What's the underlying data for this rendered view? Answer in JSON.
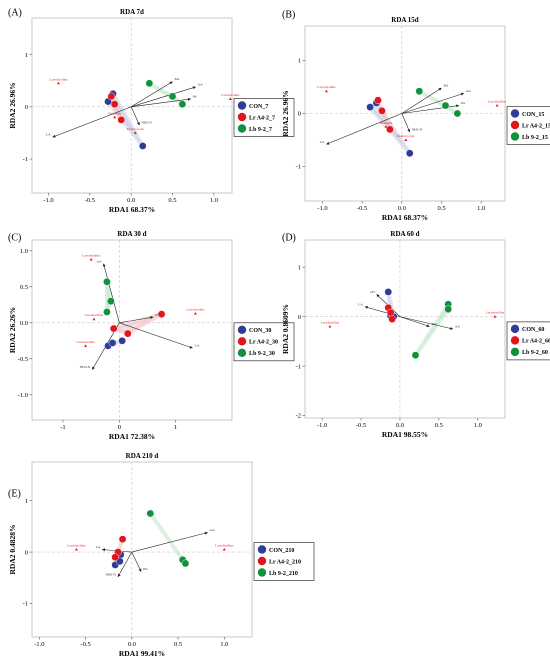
{
  "chart_data": [
    {
      "type": "scatter",
      "panel_label": "(A)",
      "title": "RDA  7d",
      "xlabel": "RDA1 68.37%",
      "ylabel": "RDA2 26.96%",
      "xticks": [
        -1.0,
        -0.5,
        0.0,
        0.5,
        1.0
      ],
      "xtick_labels": [
        "-1.0",
        "-0.5",
        "0.0",
        "0.5",
        "1.0"
      ],
      "yticks": [
        -1,
        0,
        1
      ],
      "ytick_labels": [
        "-1",
        "0",
        "1"
      ],
      "xlim": [
        -1.2,
        1.22
      ],
      "ylim": [
        -1.65,
        1.7
      ],
      "legend": [
        "CON_7",
        "Lr A4-2_7",
        "Lb 9-2_7"
      ],
      "legend_position": "right",
      "series": [
        {
          "name": "CON_7",
          "color": "#2e3d97",
          "points": [
            [
              -0.28,
              0.1
            ],
            [
              -0.22,
              0.25
            ],
            [
              0.14,
              -0.75
            ]
          ]
        },
        {
          "name": "Lr A4-2_7",
          "color": "#e3141c",
          "points": [
            [
              -0.24,
              0.2
            ],
            [
              -0.2,
              0.05
            ],
            [
              -0.12,
              -0.25
            ]
          ]
        },
        {
          "name": "Lb 9-2_7",
          "color": "#12913c",
          "points": [
            [
              0.22,
              0.45
            ],
            [
              0.5,
              0.2
            ],
            [
              0.62,
              0.05
            ]
          ]
        }
      ],
      "vectors": [
        {
          "label": "LA",
          "end": [
            -0.95,
            -0.58
          ]
        },
        {
          "label": "AA",
          "end": [
            0.78,
            0.38
          ]
        },
        {
          "label": "PA",
          "end": [
            0.72,
            0.15
          ]
        },
        {
          "label": "BA",
          "end": [
            0.5,
            0.48
          ]
        },
        {
          "label": "NH3-N",
          "end": [
            0.1,
            -0.35
          ]
        }
      ],
      "species": [
        {
          "label": "Lactobacillus",
          "pos": [
            -0.88,
            0.45
          ]
        },
        {
          "label": "Lactobacillus",
          "pos": [
            1.2,
            0.15
          ]
        },
        {
          "label": "Weissella",
          "pos": [
            -0.2,
            -0.2
          ]
        },
        {
          "label": "Pediococcus",
          "pos": [
            0.05,
            -0.5
          ]
        }
      ]
    },
    {
      "type": "scatter",
      "panel_label": "(B)",
      "title": "RDA  15d",
      "xlabel": "RDA1 68.37%",
      "ylabel": "RDA2 26.96%",
      "xticks": [
        -1.0,
        -0.5,
        0.0,
        0.5,
        1.0
      ],
      "xtick_labels": [
        "-1.0",
        "-0.5",
        "0.0",
        "0.5",
        "1.0"
      ],
      "yticks": [
        -1,
        0,
        1
      ],
      "ytick_labels": [
        "-1",
        "0",
        "1"
      ],
      "xlim": [
        -1.22,
        1.3
      ],
      "ylim": [
        -1.65,
        1.65
      ],
      "legend": [
        "CON_15",
        "Lr A4-2_15",
        "Lb 9-2_15"
      ],
      "legend_position": "right",
      "series": [
        {
          "name": "CON_15",
          "color": "#2e3d97",
          "points": [
            [
              -0.4,
              0.12
            ],
            [
              -0.32,
              0.2
            ],
            [
              0.1,
              -0.75
            ]
          ]
        },
        {
          "name": "Lr A4-2_15",
          "color": "#e3141c",
          "points": [
            [
              -0.3,
              0.25
            ],
            [
              -0.25,
              0.05
            ],
            [
              -0.15,
              -0.3
            ]
          ]
        },
        {
          "name": "Lb 9-2_15",
          "color": "#12913c",
          "points": [
            [
              0.22,
              0.42
            ],
            [
              0.55,
              0.15
            ],
            [
              0.7,
              0.0
            ]
          ]
        }
      ],
      "vectors": [
        {
          "label": "LA",
          "end": [
            -0.95,
            -0.58
          ]
        },
        {
          "label": "AA",
          "end": [
            0.78,
            0.38
          ]
        },
        {
          "label": "PA",
          "end": [
            0.72,
            0.15
          ]
        },
        {
          "label": "BA",
          "end": [
            0.5,
            0.48
          ]
        },
        {
          "label": "NH3-N",
          "end": [
            0.1,
            -0.35
          ]
        }
      ],
      "species": [
        {
          "label": "Lactobacillus",
          "pos": [
            -0.95,
            0.42
          ]
        },
        {
          "label": "Lactobacillus",
          "pos": [
            1.2,
            0.15
          ]
        },
        {
          "label": "Weissella",
          "pos": [
            -0.2,
            -0.25
          ]
        },
        {
          "label": "Pediococcus",
          "pos": [
            0.05,
            -0.5
          ]
        }
      ]
    },
    {
      "type": "scatter",
      "panel_label": "(C)",
      "title": "RDA  30 d",
      "xlabel": "RDA1 72.38%",
      "ylabel": "RDA2 26.26%",
      "xticks": [
        -1,
        0,
        1
      ],
      "xtick_labels": [
        "-1",
        "0",
        "1"
      ],
      "yticks": [
        -1.0,
        -0.5,
        0.0,
        0.5,
        1.0
      ],
      "ytick_labels": [
        "-1.0",
        "-0.5",
        "0.0",
        "0.5",
        "1.0"
      ],
      "xlim": [
        -1.55,
        2.0
      ],
      "ylim": [
        -1.35,
        1.15
      ],
      "legend": [
        "CON_30",
        "Lr A4-2_30",
        "Lb 9-2_30"
      ],
      "legend_position": "right",
      "series": [
        {
          "name": "CON_30",
          "color": "#2e3d97",
          "points": [
            [
              -0.2,
              -0.32
            ],
            [
              -0.12,
              -0.28
            ],
            [
              0.05,
              -0.25
            ]
          ]
        },
        {
          "name": "Lr A4-2_30",
          "color": "#e3141c",
          "points": [
            [
              -0.1,
              -0.08
            ],
            [
              0.15,
              -0.15
            ],
            [
              0.75,
              0.12
            ]
          ]
        },
        {
          "name": "Lb 9-2_30",
          "color": "#12913c",
          "points": [
            [
              -0.22,
              0.57
            ],
            [
              -0.15,
              0.3
            ],
            [
              -0.22,
              0.15
            ]
          ]
        }
      ],
      "vectors": [
        {
          "label": "AA",
          "end": [
            -0.28,
            0.82
          ]
        },
        {
          "label": "LA",
          "end": [
            1.3,
            -0.35
          ]
        },
        {
          "label": "NH3-N",
          "end": [
            -0.48,
            -0.65
          ]
        },
        {
          "label": "pH",
          "end": [
            0.6,
            0.08
          ]
        }
      ],
      "species": [
        {
          "label": "Lactobacillus",
          "pos": [
            -0.5,
            0.88
          ]
        },
        {
          "label": "Lactobacillus",
          "pos": [
            1.35,
            0.13
          ]
        },
        {
          "label": "Lactobacillus",
          "pos": [
            -0.6,
            -0.32
          ]
        },
        {
          "label": "Lactobacillus",
          "pos": [
            -0.45,
            0.05
          ]
        }
      ]
    },
    {
      "type": "scatter",
      "panel_label": "(D)",
      "title": "RDA  60 d",
      "xlabel": "RDA1 98.55%",
      "ylabel": "RDA2 0.8609%",
      "xticks": [
        -1.0,
        -0.5,
        0.0,
        0.5,
        1.0
      ],
      "xtick_labels": [
        "-1.0",
        "-0.5",
        "0.0",
        "0.5",
        "1.0"
      ],
      "yticks": [
        -2,
        -1,
        0,
        1
      ],
      "ytick_labels": [
        "-2",
        "-1",
        "0",
        "1"
      ],
      "xlim": [
        -1.22,
        1.35
      ],
      "ylim": [
        -2.05,
        1.55
      ],
      "legend": [
        "CON_60",
        "Lr A4-2_60",
        "Lb 9-2_60"
      ],
      "legend_position": "right",
      "series": [
        {
          "name": "CON_60",
          "color": "#2e3d97",
          "points": [
            [
              -0.15,
              0.5
            ],
            [
              -0.12,
              0.02
            ],
            [
              -0.08,
              0.0
            ]
          ]
        },
        {
          "name": "Lr A4-2_60",
          "color": "#e3141c",
          "points": [
            [
              -0.15,
              0.18
            ],
            [
              -0.12,
              0.08
            ],
            [
              -0.1,
              -0.05
            ]
          ]
        },
        {
          "name": "Lb 9-2_60",
          "color": "#12913c",
          "points": [
            [
              0.2,
              -0.78
            ],
            [
              0.62,
              0.25
            ],
            [
              0.62,
              0.15
            ]
          ]
        }
      ],
      "vectors": [
        {
          "label": "AA",
          "end": [
            0.68,
            -0.25
          ]
        },
        {
          "label": "LA",
          "end": [
            -0.45,
            0.2
          ]
        },
        {
          "label": "BA",
          "end": [
            0.38,
            -0.2
          ]
        },
        {
          "label": "pH",
          "end": [
            -0.3,
            0.45
          ]
        }
      ],
      "species": [
        {
          "label": "Lactobacillus",
          "pos": [
            -0.9,
            -0.2
          ]
        },
        {
          "label": "Lactobacillus",
          "pos": [
            1.22,
            0.0
          ]
        }
      ]
    },
    {
      "type": "scatter",
      "panel_label": "(E)",
      "title": "RDA  210 d",
      "xlabel": "RDA1 99.41%",
      "ylabel": "RDA2 0.4828%",
      "xticks": [
        -1.0,
        -0.5,
        0.0,
        0.5,
        1.0
      ],
      "xtick_labels": [
        "-1.0",
        "-0.5",
        "0.0",
        "0.5",
        "1.0"
      ],
      "yticks": [
        -1,
        0,
        1
      ],
      "ytick_labels": [
        "-1",
        "0",
        "1"
      ],
      "xlim": [
        -1.08,
        1.3
      ],
      "ylim": [
        -1.65,
        1.75
      ],
      "legend": [
        "CON_210",
        "Lr A4-2_210",
        "Lb 9-2_210"
      ],
      "legend_position": "right",
      "series": [
        {
          "name": "CON_210",
          "color": "#2e3d97",
          "points": [
            [
              -0.12,
              -0.05
            ],
            [
              -0.18,
              -0.25
            ],
            [
              -0.13,
              -0.18
            ]
          ]
        },
        {
          "name": "Lr A4-2_210",
          "color": "#e3141c",
          "points": [
            [
              -0.1,
              0.25
            ],
            [
              -0.15,
              0.0
            ],
            [
              -0.18,
              -0.1
            ]
          ]
        },
        {
          "name": "Lb 9-2_210",
          "color": "#12913c",
          "points": [
            [
              0.2,
              0.75
            ],
            [
              0.55,
              -0.15
            ],
            [
              0.58,
              -0.22
            ]
          ]
        }
      ],
      "vectors": [
        {
          "label": "AA",
          "end": [
            0.82,
            0.38
          ]
        },
        {
          "label": "LA",
          "end": [
            -0.32,
            0.05
          ]
        },
        {
          "label": "BA",
          "end": [
            0.1,
            -0.38
          ]
        },
        {
          "label": "NH3-N",
          "end": [
            -0.15,
            -0.48
          ]
        }
      ],
      "species": [
        {
          "label": "Lactobacillus",
          "pos": [
            -0.6,
            0.05
          ]
        },
        {
          "label": "Lactobacillus",
          "pos": [
            1.0,
            0.05
          ]
        }
      ]
    }
  ]
}
